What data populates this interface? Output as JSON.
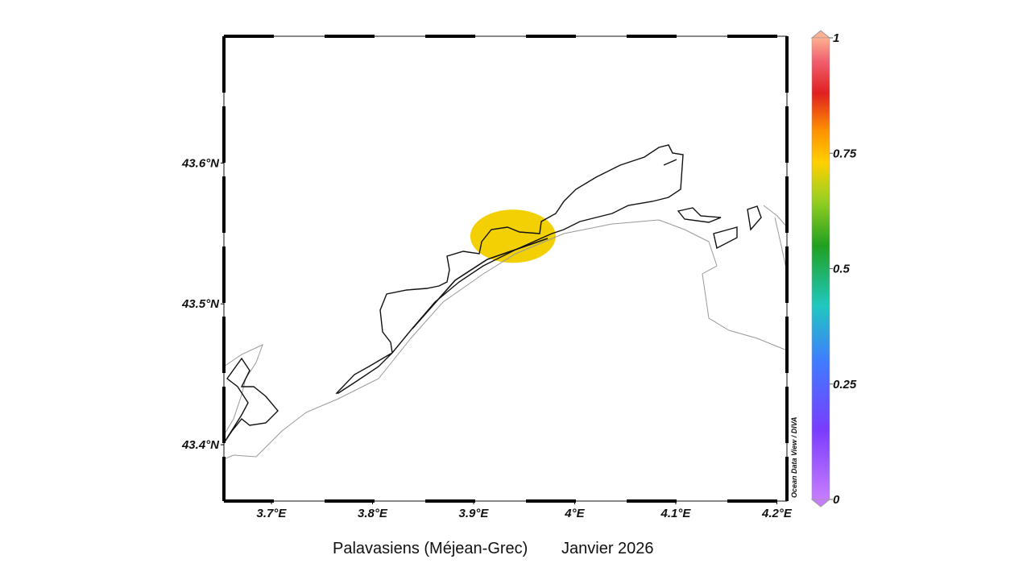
{
  "chart_data": {
    "type": "map",
    "xlim": [
      3.653,
      4.21
    ],
    "ylim": [
      43.36,
      43.69
    ],
    "xticks": [
      {
        "value": 3.7,
        "label": "3.7°E"
      },
      {
        "value": 3.8,
        "label": "3.8°E"
      },
      {
        "value": 3.9,
        "label": "3.9°E"
      },
      {
        "value": 4.0,
        "label": "4°E"
      },
      {
        "value": 4.1,
        "label": "4.1°E"
      },
      {
        "value": 4.2,
        "label": "4.2°E"
      }
    ],
    "yticks": [
      {
        "value": 43.4,
        "label": "43.4°N"
      },
      {
        "value": 43.5,
        "label": "43.5°N"
      },
      {
        "value": 43.6,
        "label": "43.6°N"
      }
    ],
    "colorbar_ticks": [
      0,
      0.25,
      0.5,
      0.75,
      1
    ],
    "zones": [
      {
        "lon": 3.939,
        "lat": 43.548,
        "value": 0.72
      }
    ],
    "watermark": "Ocean Data View / DIVA",
    "caption": [
      "Palavasiens (Méjean-Grec)",
      "Janvier 2026"
    ]
  }
}
